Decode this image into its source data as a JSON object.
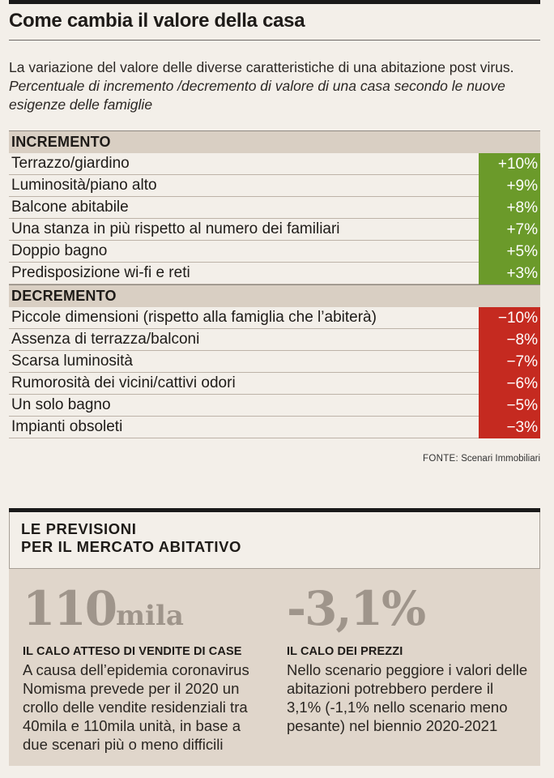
{
  "header": {
    "title": "Come cambia il valore della casa",
    "intro_plain": "La variazione del valore delle diverse caratteristiche di una abitazione post virus.",
    "intro_italic": "Percentuale di incremento /decremento di valore di una casa secondo le nuove esigenze delle famiglie"
  },
  "increment": {
    "heading": "INCREMENTO",
    "rows": [
      {
        "label": "Terrazzo/giardino",
        "value": "+10%"
      },
      {
        "label": "Luminosità/piano alto",
        "value": "+9%"
      },
      {
        "label": "Balcone abitabile",
        "value": "+8%"
      },
      {
        "label": "Una stanza in più rispetto al numero dei familiari",
        "value": "+7%"
      },
      {
        "label": "Doppio bagno",
        "value": "+5%"
      },
      {
        "label": "Predisposizione wi-fi e reti",
        "value": "+3%"
      }
    ]
  },
  "decrement": {
    "heading": "DECREMENTO",
    "rows": [
      {
        "label": "Piccole dimensioni  (rispetto alla famiglia che l’abiterà)",
        "value": "−10%"
      },
      {
        "label": "Assenza di terrazza/balconi",
        "value": "−8%"
      },
      {
        "label": "Scarsa luminosità",
        "value": "−7%"
      },
      {
        "label": "Rumorosità dei vicini/cattivi odori",
        "value": "−6%"
      },
      {
        "label": "Un solo bagno",
        "value": "−5%"
      },
      {
        "label": "Impianti obsoleti",
        "value": "−3%"
      }
    ]
  },
  "source": {
    "key": "FONTE:",
    "value": "Scenari Immobiliari"
  },
  "forecast": {
    "title_line1": "LE PREVISIONI",
    "title_line2": "PER IL MERCATO ABITATIVO",
    "left": {
      "big_number": "110",
      "big_unit": "mila",
      "subtitle": "IL CALO ATTESO DI VENDITE DI CASE",
      "text": "A causa dell’epidemia coronavirus Nomisma prevede per il 2020 un crollo delle vendite residenziali tra 40mila e 110mila unità, in base a due scenari più o meno difficili"
    },
    "right": {
      "big_number": "-3,1%",
      "subtitle": "IL CALO DEI PREZZI",
      "text": "Nello scenario peggiore i valori delle abitazioni potrebbero perdere il 3,1% (-1,1% nello scenario meno pesante) nel biennio 2020-2021"
    }
  },
  "colors": {
    "positive": "#6b9a2a",
    "negative": "#c52a20",
    "panel": "#e0d6cb",
    "header_band": "#d9cfc3"
  }
}
